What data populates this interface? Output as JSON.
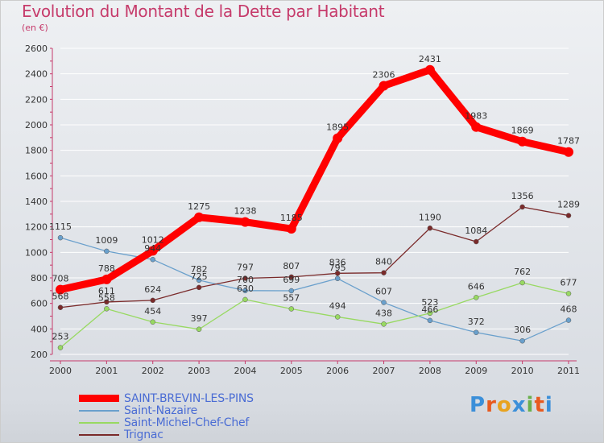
{
  "header": {
    "title": "Evolution du Montant de la Dette par Habitant",
    "subtitle": "(en €)"
  },
  "brand": {
    "text": "Proxiti",
    "colors": [
      "#3b8fd9",
      "#e85a1f",
      "#e8a31f",
      "#3b8fd9",
      "#6ab04c",
      "#e85a1f",
      "#3b8fd9"
    ]
  },
  "chart_data": {
    "type": "line",
    "x": [
      "2000",
      "2001",
      "2002",
      "2003",
      "2004",
      "2005",
      "2006",
      "2007",
      "2008",
      "2009",
      "2010",
      "2011"
    ],
    "ylim": [
      200,
      2600
    ],
    "yticks": [
      200,
      400,
      600,
      800,
      1000,
      1200,
      1400,
      1600,
      1800,
      2000,
      2200,
      2400,
      2600
    ],
    "grid": true,
    "legend": "bottom-left",
    "series": [
      {
        "name": "SAINT-BREVIN-LES-PINS",
        "color": "#ff0000",
        "width": 9,
        "values": [
          708,
          788,
          1012,
          1275,
          1238,
          1185,
          1895,
          2306,
          2431,
          1983,
          1869,
          1787
        ]
      },
      {
        "name": "Saint-Nazaire",
        "color": "#6aa0cc",
        "width": 1.3,
        "values": [
          1115,
          1009,
          944,
          782,
          700,
          699,
          795,
          607,
          466,
          372,
          306,
          468
        ]
      },
      {
        "name": "Saint-Michel-Chef-Chef",
        "color": "#98d962",
        "width": 1.3,
        "values": [
          253,
          558,
          454,
          397,
          630,
          557,
          494,
          438,
          523,
          646,
          762,
          677
        ]
      },
      {
        "name": "Trignac",
        "color": "#7a2a2a",
        "width": 1.3,
        "values": [
          568,
          611,
          624,
          725,
          797,
          807,
          836,
          840,
          1190,
          1084,
          1356,
          1289
        ]
      }
    ]
  }
}
